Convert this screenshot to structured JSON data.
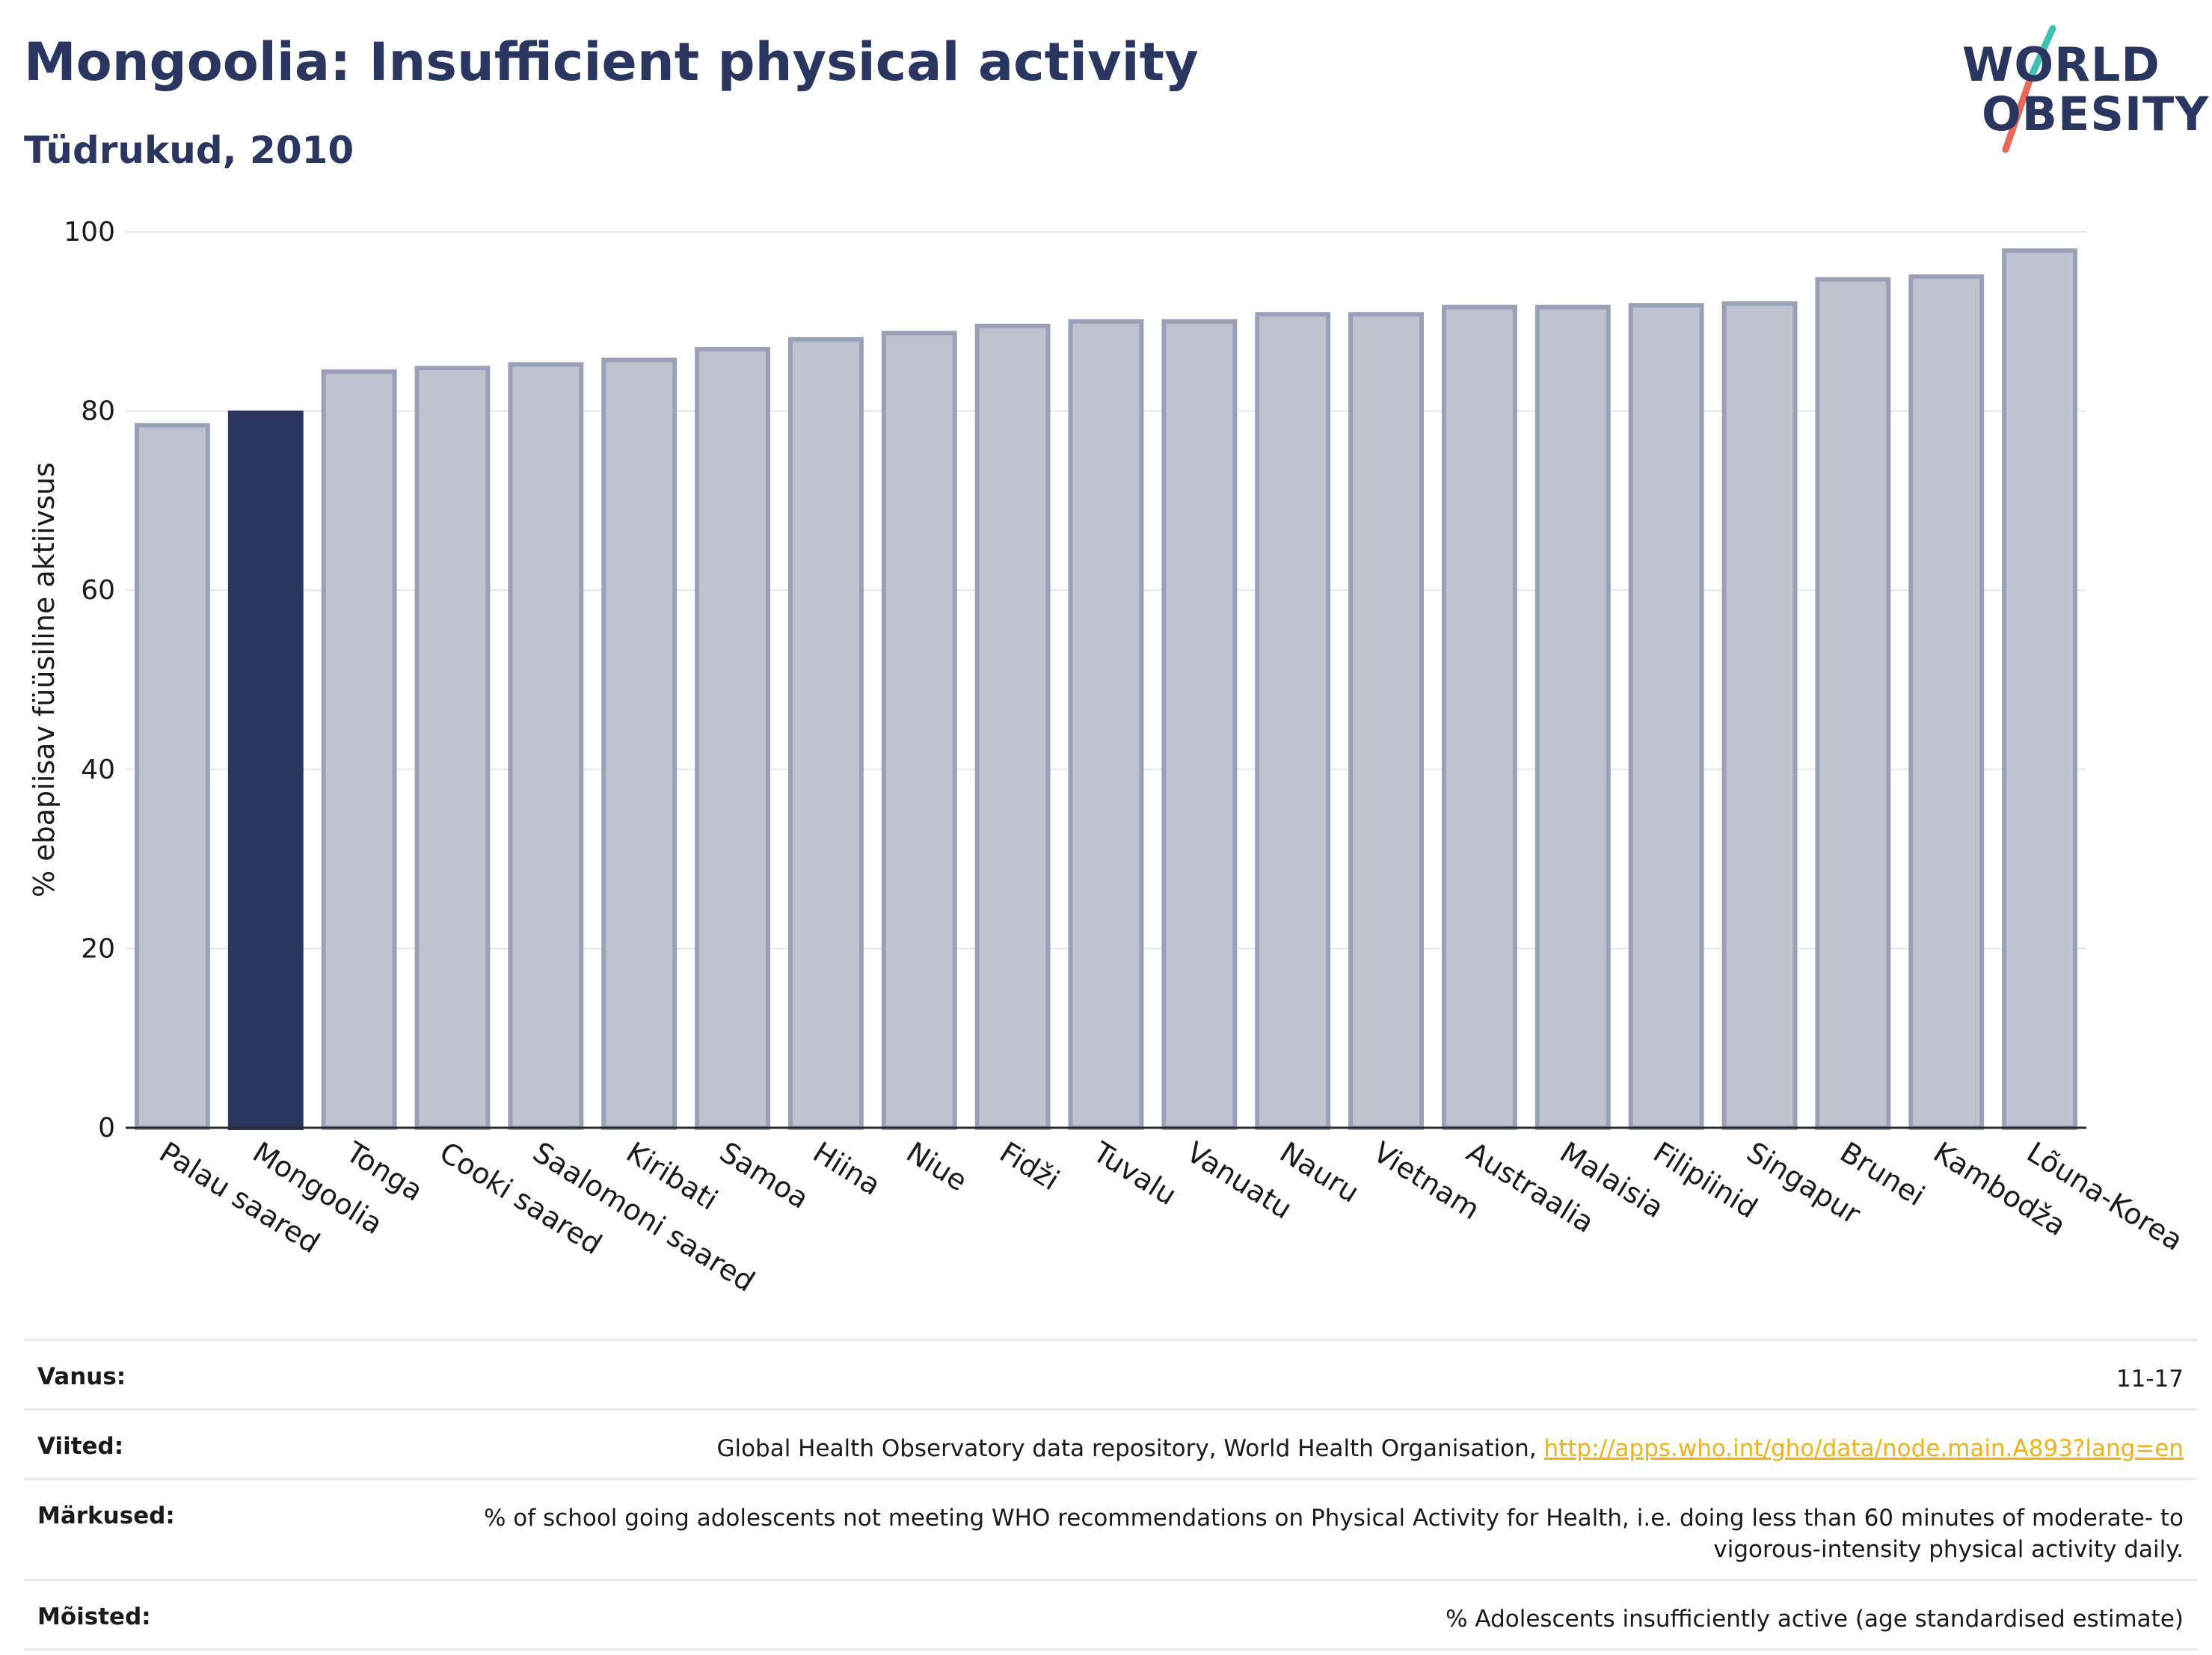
{
  "header": {
    "title": "Mongoolia: Insufficient physical activity",
    "subtitle": "Tüdrukud, 2010"
  },
  "logo": {
    "line1": "WORLD",
    "line2": "OBESITY",
    "colors": {
      "text": "#2b3660",
      "slash_top": "#3fc1b0",
      "slash_bottom": "#e8685a"
    }
  },
  "chart_data": {
    "type": "bar",
    "title": "",
    "xlabel": "",
    "ylabel": "% ebapiisav füüsiline aktiivsus",
    "ylim": [
      0,
      100
    ],
    "yticks": [
      0,
      20,
      40,
      60,
      80,
      100
    ],
    "grid": true,
    "highlight": "Mongoolia",
    "colors": {
      "bar": "#bfc3d0",
      "bar_edge": "#9aa0b8",
      "highlight": "#2b3660"
    },
    "categories": [
      "Palau saared",
      "Mongoolia",
      "Tonga",
      "Cooki saared",
      "Saalomoni saared",
      "Kiribati",
      "Samoa",
      "Hiina",
      "Niue",
      "Fidži",
      "Tuvalu",
      "Vanuatu",
      "Nauru",
      "Vietnam",
      "Austraalia",
      "Malaisia",
      "Filipiinid",
      "Singapur",
      "Brunei",
      "Kambodža",
      "Lõuna-Korea"
    ],
    "values": [
      78.4,
      79.8,
      84.4,
      84.8,
      85.2,
      85.7,
      86.9,
      88.0,
      88.7,
      89.5,
      90.0,
      90.0,
      90.8,
      90.8,
      91.6,
      91.6,
      91.8,
      92.0,
      94.7,
      95.0,
      97.9
    ]
  },
  "meta": {
    "age_label": "Vanus:",
    "age_value": "11-17",
    "refs_label": "Viited:",
    "refs_text": "Global Health Observatory data repository, World Health Organisation, ",
    "refs_link": "http://apps.who.int/gho/data/node.main.A893?lang=en",
    "notes_label": "Märkused:",
    "notes_value": "% of school going adolescents not meeting WHO recommendations on Physical Activity for Health, i.e. doing less than 60 minutes of moderate- to vigorous-intensity physical activity daily.",
    "defs_label": "Mõisted:",
    "defs_value": "% Adolescents insufficiently active (age standardised estimate)"
  }
}
